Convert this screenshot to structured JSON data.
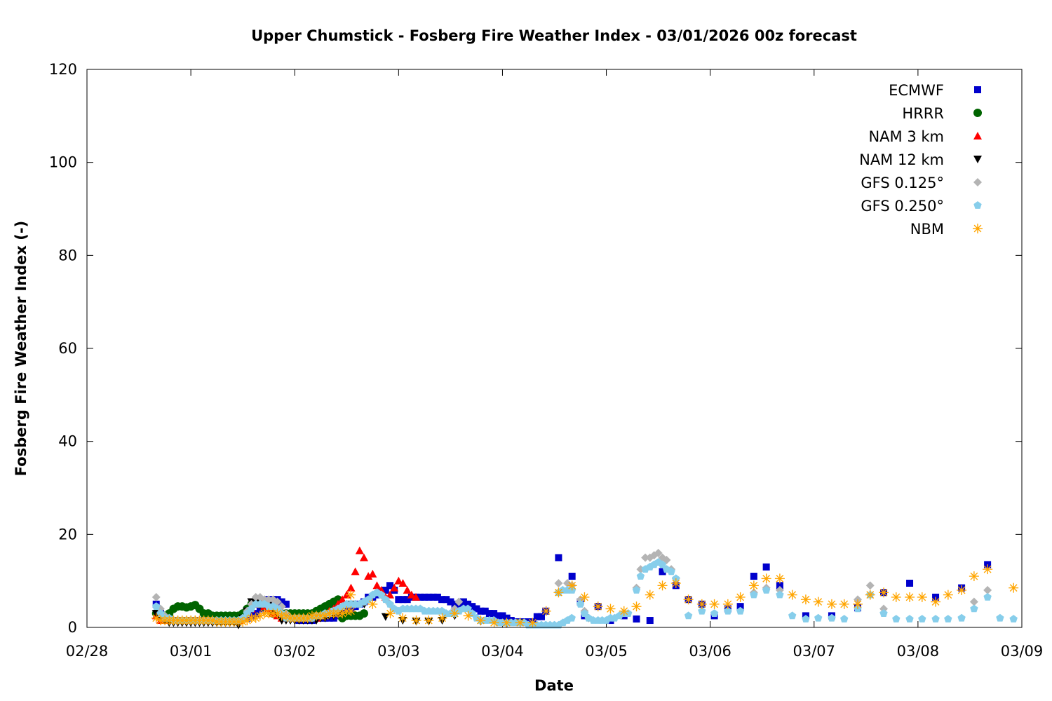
{
  "chart_data": {
    "type": "scatter",
    "title": "Upper Chumstick - Fosberg Fire Weather Index - 03/01/2026 00z forecast",
    "xlabel": "Date",
    "ylabel": "Fosberg Fire Weather Index (-)",
    "x_units": "days since 02/28 00:00",
    "xlim": [
      0,
      9
    ],
    "ylim": [
      0,
      120
    ],
    "xticks": [
      {
        "value": 0,
        "label": "02/28"
      },
      {
        "value": 1,
        "label": "03/01"
      },
      {
        "value": 2,
        "label": "03/02"
      },
      {
        "value": 3,
        "label": "03/03"
      },
      {
        "value": 4,
        "label": "03/04"
      },
      {
        "value": 5,
        "label": "03/05"
      },
      {
        "value": 6,
        "label": "03/06"
      },
      {
        "value": 7,
        "label": "03/07"
      },
      {
        "value": 8,
        "label": "03/08"
      },
      {
        "value": 9,
        "label": "03/09"
      }
    ],
    "yticks": [
      {
        "value": 0,
        "label": "0"
      },
      {
        "value": 20,
        "label": "20"
      },
      {
        "value": 40,
        "label": "40"
      },
      {
        "value": 60,
        "label": "60"
      },
      {
        "value": 80,
        "label": "80"
      },
      {
        "value": 100,
        "label": "100"
      },
      {
        "value": 120,
        "label": "120"
      }
    ],
    "grid": false,
    "legend_position": "top-right",
    "series": [
      {
        "name": "ECMWF",
        "marker": "square",
        "color": "#0000cc",
        "hourly": {
          "start": 0.6667,
          "values": [
            5,
            3,
            2,
            2,
            1.5,
            1.5,
            1.5,
            1.5,
            1.5,
            1.5,
            1.5,
            1.5,
            1.5,
            1.5,
            1.5,
            1.5,
            1.5,
            1.5,
            2,
            2,
            2,
            2,
            2.5,
            3,
            4,
            5.5,
            6,
            6,
            6,
            5.5,
            5,
            3,
            2,
            1.5,
            1.5,
            1.5,
            1.5,
            2,
            2,
            2,
            2,
            2,
            2.5,
            3,
            3.5,
            4,
            4.5,
            5,
            5.5,
            6.5,
            6.5,
            7,
            7.5,
            8,
            9,
            8,
            6,
            6,
            6,
            6.5,
            6.5,
            6.5,
            6.5,
            6.5,
            6.5,
            6.5,
            6,
            6,
            5.5,
            5,
            4.5,
            5.5,
            5,
            4.5,
            4,
            3.5,
            3.5,
            3,
            3,
            2.5,
            2.5,
            2,
            1.5,
            1.2,
            1.2,
            1.2,
            1.2,
            1.2,
            2.3,
            2.3,
            3.5
          ]
        },
        "points": [
          [
            4.54,
            15
          ],
          [
            4.67,
            11
          ],
          [
            4.75,
            5.5
          ],
          [
            4.79,
            2.5
          ],
          [
            4.92,
            4.5
          ],
          [
            5.04,
            1.5
          ],
          [
            5.17,
            2.5
          ],
          [
            5.29,
            1.8
          ],
          [
            5.42,
            1.5
          ],
          [
            5.54,
            12
          ],
          [
            5.67,
            9
          ],
          [
            5.79,
            6
          ],
          [
            5.92,
            5
          ],
          [
            6.04,
            2.5
          ],
          [
            6.17,
            4
          ],
          [
            6.29,
            4.5
          ],
          [
            6.42,
            11
          ],
          [
            6.54,
            13
          ],
          [
            6.67,
            9
          ],
          [
            6.92,
            2.5
          ],
          [
            7.17,
            2.5
          ],
          [
            7.42,
            4.2
          ],
          [
            7.67,
            7.5
          ],
          [
            7.92,
            9.5
          ],
          [
            8.17,
            6.5
          ],
          [
            8.42,
            8.5
          ],
          [
            8.67,
            13.5
          ]
        ]
      },
      {
        "name": "HRRR",
        "marker": "circle",
        "color": "#006400",
        "hourly": {
          "start": 0.6667,
          "values": [
            3,
            2.5,
            2.5,
            3,
            4,
            4.5,
            4.5,
            4.3,
            4.5,
            4.8,
            4,
            3,
            3,
            2.5,
            2.5,
            2.5,
            2.5,
            2.5,
            2.5,
            2.5,
            3,
            4,
            5,
            5.5,
            5,
            4.5,
            4,
            3,
            3,
            3,
            3,
            3,
            3,
            3,
            3,
            3,
            3,
            3.5,
            4,
            4.5,
            5,
            5.5,
            6,
            2,
            2.5,
            2.5,
            2.5,
            2.5,
            3
          ]
        },
        "points": []
      },
      {
        "name": "NAM 3 km",
        "marker": "triangle-up",
        "color": "#ff0000",
        "hourly": {
          "start": 0.6667,
          "values": [
            2.5,
            1.5,
            1.5,
            1.5,
            1.5,
            1.5,
            1.5,
            1.5,
            1.5,
            1.5,
            1.5,
            1.5,
            1.5,
            1.5,
            1.5,
            1.5,
            1.5,
            1.5,
            1.5,
            1.5,
            2,
            3,
            4,
            5,
            5,
            4.5,
            4,
            3,
            2.5,
            2,
            2,
            2,
            2,
            2,
            2,
            2,
            2,
            2,
            2.5,
            3,
            3.5,
            4,
            5,
            6,
            7,
            8.5,
            12,
            16.5,
            15,
            11,
            11.5,
            9,
            8,
            6.5,
            7,
            8.5,
            10,
            9.5,
            8,
            7,
            6.5
          ]
        },
        "points": []
      },
      {
        "name": "NAM 12 km",
        "marker": "triangle-down",
        "color": "#000000",
        "hourly": {
          "start": 0.6667,
          "values": [
            3,
            2,
            1.5,
            1,
            1,
            1,
            1,
            1,
            1,
            1,
            1,
            1,
            1,
            1,
            1,
            1,
            1,
            1,
            1,
            0.5,
            2,
            3.5,
            5.5,
            5.5,
            5,
            5,
            5,
            4,
            3,
            1.5,
            1.5,
            1.5,
            1.5,
            1.5,
            1.5,
            1.5,
            1.5,
            1.5,
            2,
            2,
            2.5,
            2.5
          ]
        },
        "points": [
          [
            2.29,
            2.5
          ],
          [
            2.42,
            3
          ],
          [
            2.54,
            5
          ],
          [
            2.67,
            5
          ],
          [
            2.875,
            2.3
          ],
          [
            3.04,
            1.5
          ],
          [
            3.17,
            1.3
          ],
          [
            3.29,
            1.3
          ],
          [
            3.42,
            1.5
          ],
          [
            3.54,
            2.5
          ],
          [
            3.79,
            1.3
          ],
          [
            4.04,
            0.8
          ],
          [
            4.17,
            1
          ]
        ]
      },
      {
        "name": "GFS 0.125°",
        "marker": "diamond",
        "color": "#b4b4b4",
        "hourly": {
          "start": 0.6667,
          "values": [
            6.5,
            4,
            2.5,
            2,
            1.5,
            1.5,
            1.5,
            1.5,
            1.5,
            1.5,
            1.5,
            1.5,
            1.5,
            1.5,
            1.5,
            1.5,
            1.5,
            1.5,
            1.5,
            1.5,
            2,
            3.5,
            5,
            6.5,
            6.5,
            6,
            6,
            6,
            5.5,
            4.5,
            3,
            2,
            2,
            2,
            2,
            2,
            2,
            2.5,
            2.5,
            3,
            3,
            3.5,
            4,
            4.5,
            5,
            5,
            5,
            5,
            5.5,
            6,
            7,
            7.5,
            7,
            6,
            5,
            4
          ]
        },
        "points": [
          [
            3.54,
            4
          ],
          [
            3.58,
            5.5
          ],
          [
            4.54,
            9.5
          ],
          [
            4.625,
            9.5
          ],
          [
            4.67,
            9
          ],
          [
            4.75,
            6
          ],
          [
            4.79,
            3.5
          ],
          [
            4.83,
            2
          ],
          [
            5.29,
            8.5
          ],
          [
            5.33,
            12.5
          ],
          [
            5.375,
            15
          ],
          [
            5.42,
            15
          ],
          [
            5.46,
            15.5
          ],
          [
            5.5,
            16
          ],
          [
            5.54,
            15
          ],
          [
            5.58,
            14.5
          ],
          [
            5.625,
            12.5
          ],
          [
            5.67,
            10.5
          ],
          [
            6.42,
            7.5
          ],
          [
            6.54,
            8.5
          ],
          [
            6.67,
            8
          ],
          [
            7.42,
            6
          ],
          [
            7.54,
            9
          ],
          [
            7.67,
            4
          ],
          [
            8.54,
            5.5
          ],
          [
            8.67,
            8
          ]
        ]
      },
      {
        "name": "GFS 0.250°",
        "marker": "pentagon",
        "color": "#87ceeb",
        "hourly": {
          "start": 0.6667,
          "values": [
            4.5,
            3,
            2,
            2,
            1.5,
            1.5,
            1.5,
            1.5,
            1.5,
            1.5,
            1.5,
            1.5,
            1.5,
            1.5,
            1.5,
            1.5,
            1.5,
            1.5,
            1.5,
            1.5,
            2,
            3,
            4,
            5,
            5,
            5,
            4.5,
            4.5,
            4,
            3,
            2,
            2,
            2,
            2,
            2,
            2,
            2,
            2.5,
            2.5,
            3,
            3,
            3.5,
            4,
            4.5,
            5,
            5,
            5,
            5,
            5.5,
            6,
            7,
            7.5,
            7,
            6,
            5,
            4,
            3.5,
            4,
            4,
            4,
            4,
            4,
            3.5,
            3.5,
            3.5,
            3.5,
            3.5,
            3,
            3,
            3,
            3.5,
            4,
            4,
            3,
            2,
            1.5,
            1.5,
            1.5,
            1.5,
            1,
            1,
            1,
            1,
            1,
            1,
            1,
            0.5,
            0.5,
            0.5,
            0.5,
            0.5,
            0.5,
            0.5,
            0.5,
            1,
            1.5,
            2
          ]
        },
        "points": [
          [
            4.54,
            7.5
          ],
          [
            4.58,
            8
          ],
          [
            4.625,
            8
          ],
          [
            4.67,
            8
          ],
          [
            4.75,
            5
          ],
          [
            4.79,
            3
          ],
          [
            4.83,
            2
          ],
          [
            4.875,
            1.5
          ],
          [
            4.92,
            1.5
          ],
          [
            4.96,
            1.5
          ],
          [
            5.0,
            1.5
          ],
          [
            5.04,
            2
          ],
          [
            5.08,
            2
          ],
          [
            5.125,
            2.5
          ],
          [
            5.17,
            3
          ],
          [
            5.21,
            3
          ],
          [
            5.29,
            8
          ],
          [
            5.33,
            11
          ],
          [
            5.375,
            12.5
          ],
          [
            5.42,
            13
          ],
          [
            5.46,
            13.5
          ],
          [
            5.5,
            14
          ],
          [
            5.54,
            13.5
          ],
          [
            5.58,
            12.5
          ],
          [
            5.625,
            12
          ],
          [
            5.67,
            10.5
          ],
          [
            5.79,
            2.5
          ],
          [
            5.92,
            3.5
          ],
          [
            6.04,
            3
          ],
          [
            6.17,
            3.5
          ],
          [
            6.29,
            3.5
          ],
          [
            6.42,
            7
          ],
          [
            6.54,
            8
          ],
          [
            6.67,
            7
          ],
          [
            6.79,
            2.5
          ],
          [
            6.92,
            1.8
          ],
          [
            7.04,
            2
          ],
          [
            7.17,
            2
          ],
          [
            7.29,
            1.8
          ],
          [
            7.42,
            4
          ],
          [
            7.54,
            7
          ],
          [
            7.67,
            3
          ],
          [
            7.79,
            1.8
          ],
          [
            7.92,
            1.8
          ],
          [
            8.04,
            1.8
          ],
          [
            8.17,
            1.8
          ],
          [
            8.29,
            1.8
          ],
          [
            8.42,
            2
          ],
          [
            8.54,
            4
          ],
          [
            8.67,
            6.5
          ],
          [
            8.79,
            2
          ],
          [
            8.92,
            1.8
          ]
        ]
      },
      {
        "name": "NBM",
        "marker": "asterisk",
        "color": "#ffa500",
        "hourly": {
          "start": 0.6667,
          "values": [
            2,
            1.5,
            1.5,
            1.5,
            1.5,
            1.5,
            1.5,
            1.5,
            1.5,
            1.5,
            1.5,
            1.5,
            1.5,
            1.5,
            1.2,
            1.2,
            1.2,
            1.2,
            1.2,
            1.2,
            1.2,
            1.5,
            2,
            2,
            2.5,
            3,
            3,
            3,
            3,
            2.5,
            2.5,
            2,
            2,
            2,
            2,
            2,
            2.5,
            2.5,
            2.5,
            2.5,
            3,
            3,
            3,
            3,
            3.5,
            3.5
          ]
        },
        "points": [
          [
            2.54,
            7
          ],
          [
            2.75,
            5
          ],
          [
            2.92,
            3
          ],
          [
            3.04,
            2
          ],
          [
            3.17,
            1.5
          ],
          [
            3.29,
            1.5
          ],
          [
            3.42,
            2
          ],
          [
            3.54,
            3
          ],
          [
            3.67,
            2.5
          ],
          [
            3.79,
            1.5
          ],
          [
            3.92,
            1
          ],
          [
            4.04,
            1
          ],
          [
            4.17,
            1
          ],
          [
            4.29,
            1
          ],
          [
            4.42,
            3.5
          ],
          [
            4.54,
            7.5
          ],
          [
            4.67,
            9
          ],
          [
            4.79,
            6.5
          ],
          [
            4.92,
            4.5
          ],
          [
            5.04,
            4
          ],
          [
            5.17,
            3.5
          ],
          [
            5.29,
            4.5
          ],
          [
            5.42,
            7
          ],
          [
            5.54,
            9
          ],
          [
            5.67,
            9.5
          ],
          [
            5.79,
            6
          ],
          [
            5.92,
            5
          ],
          [
            6.04,
            5
          ],
          [
            6.17,
            5
          ],
          [
            6.29,
            6.5
          ],
          [
            6.42,
            9
          ],
          [
            6.54,
            10.5
          ],
          [
            6.67,
            10.5
          ],
          [
            6.79,
            7
          ],
          [
            6.92,
            6
          ],
          [
            7.04,
            5.5
          ],
          [
            7.17,
            5
          ],
          [
            7.29,
            5
          ],
          [
            7.42,
            5
          ],
          [
            7.54,
            7
          ],
          [
            7.67,
            7.5
          ],
          [
            7.79,
            6.5
          ],
          [
            7.92,
            6.5
          ],
          [
            8.04,
            6.5
          ],
          [
            8.17,
            5.5
          ],
          [
            8.29,
            7
          ],
          [
            8.42,
            8
          ],
          [
            8.54,
            11
          ],
          [
            8.67,
            12.5
          ],
          [
            8.92,
            8.5
          ]
        ]
      }
    ]
  }
}
